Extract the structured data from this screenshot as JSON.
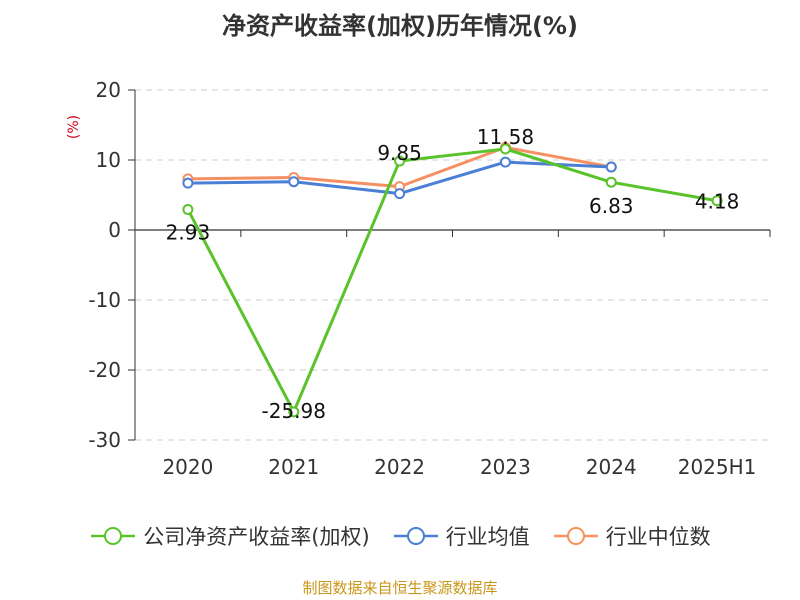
{
  "title": "净资产收益率(加权)历年情况(%)",
  "source": "制图数据来自恒生聚源数据库",
  "chart_data": {
    "type": "line",
    "title": "净资产收益率(加权)历年情况(%)",
    "ylabel": "(%)",
    "categories": [
      "2020",
      "2021",
      "2022",
      "2023",
      "2024",
      "2025H1"
    ],
    "ylim": [
      -30,
      20
    ],
    "yticks": [
      20,
      10,
      0,
      -10,
      -20,
      -30
    ],
    "grid": true,
    "legend_position": "bottom",
    "series": [
      {
        "name": "公司净资产收益率(加权)",
        "color": "#5ac22a",
        "values": [
          2.93,
          -25.98,
          9.85,
          11.58,
          6.83,
          4.18
        ],
        "labels": [
          "2.93",
          "-25.98",
          "9.85",
          "11.58",
          "6.83",
          "4.18"
        ]
      },
      {
        "name": "行业均值",
        "color": "#4a7fd6",
        "values": [
          6.7,
          6.9,
          5.2,
          9.7,
          9.0,
          null
        ]
      },
      {
        "name": "行业中位数",
        "color": "#f59062",
        "values": [
          7.3,
          7.5,
          6.2,
          11.8,
          9.0,
          null
        ]
      }
    ]
  }
}
